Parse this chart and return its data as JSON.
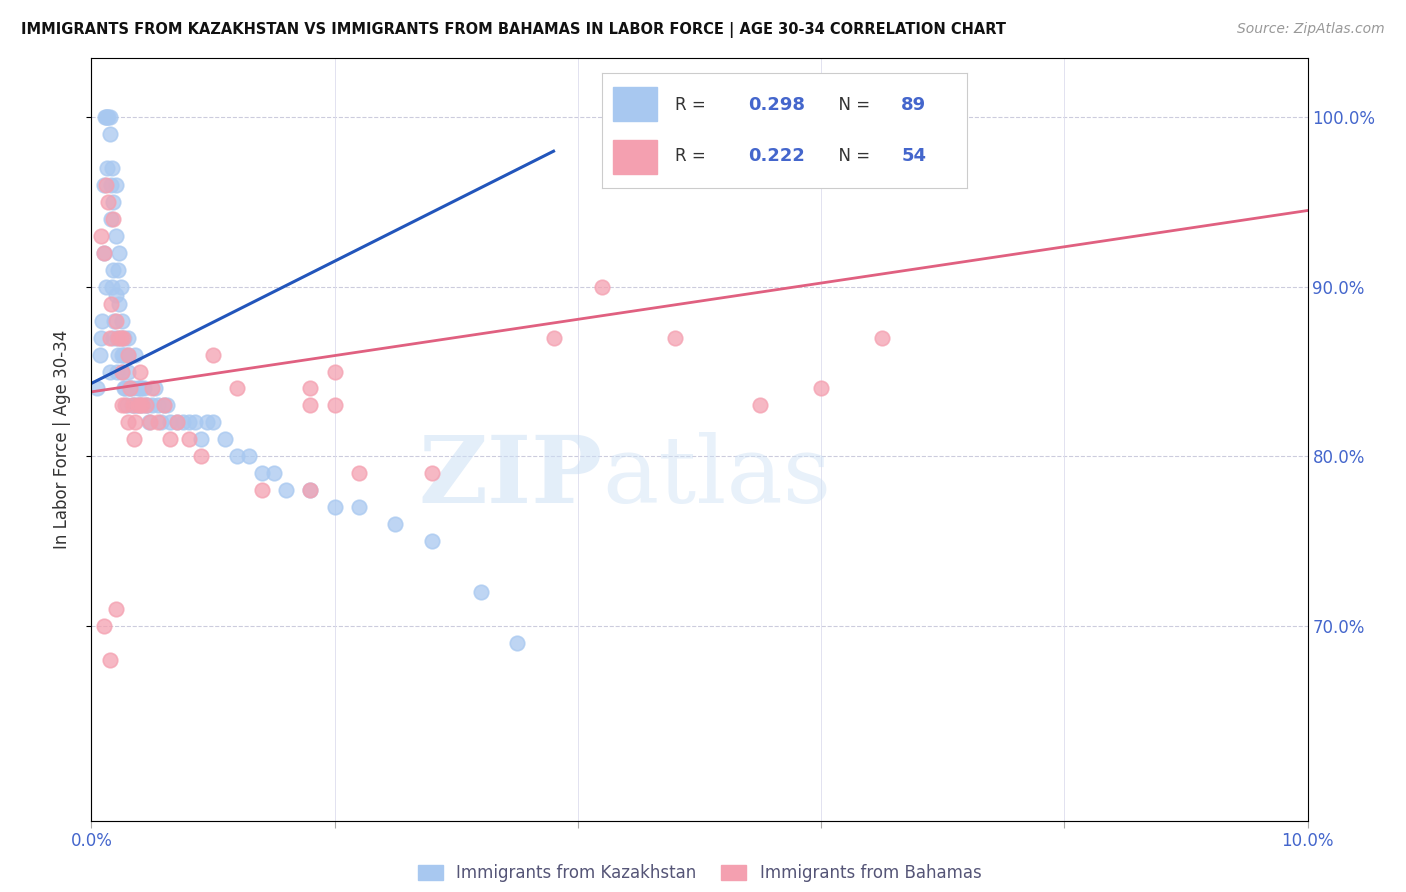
{
  "title": "IMMIGRANTS FROM KAZAKHSTAN VS IMMIGRANTS FROM BAHAMAS IN LABOR FORCE | AGE 30-34 CORRELATION CHART",
  "source": "Source: ZipAtlas.com",
  "ylabel": "In Labor Force | Age 30-34",
  "xlim": [
    0.0,
    0.1
  ],
  "ylim": [
    0.585,
    1.035
  ],
  "kazakhstan_color": "#a8c8f0",
  "bahamas_color": "#f4a0b0",
  "trend_kazakhstan_color": "#2255bb",
  "trend_bahamas_color": "#e06080",
  "R_kazakhstan": 0.298,
  "N_kazakhstan": 89,
  "R_bahamas": 0.222,
  "N_bahamas": 54,
  "legend_label_kazakhstan": "Immigrants from Kazakhstan",
  "legend_label_bahamas": "Immigrants from Bahamas",
  "background_color": "#ffffff",
  "watermark_text": "ZIP",
  "watermark_text2": "atlas",
  "value_color": "#4466cc",
  "kaz_x": [
    0.0008,
    0.001,
    0.001,
    0.0011,
    0.0012,
    0.0013,
    0.0013,
    0.0014,
    0.0015,
    0.0015,
    0.0016,
    0.0016,
    0.0017,
    0.0017,
    0.0018,
    0.0018,
    0.0019,
    0.002,
    0.002,
    0.002,
    0.0021,
    0.0022,
    0.0022,
    0.0023,
    0.0023,
    0.0024,
    0.0024,
    0.0025,
    0.0025,
    0.0026,
    0.0027,
    0.0027,
    0.0028,
    0.0028,
    0.0029,
    0.003,
    0.003,
    0.0031,
    0.0032,
    0.0033,
    0.0034,
    0.0035,
    0.0036,
    0.0037,
    0.0038,
    0.0039,
    0.004,
    0.0041,
    0.0042,
    0.0043,
    0.0045,
    0.0046,
    0.0047,
    0.005,
    0.0052,
    0.0055,
    0.0057,
    0.006,
    0.0062,
    0.0065,
    0.007,
    0.0075,
    0.008,
    0.0085,
    0.009,
    0.0095,
    0.01,
    0.011,
    0.012,
    0.013,
    0.014,
    0.015,
    0.016,
    0.018,
    0.02,
    0.022,
    0.025,
    0.028,
    0.032,
    0.035,
    0.0005,
    0.0007,
    0.0009,
    0.0012,
    0.0015,
    0.0018,
    0.0021,
    0.0025,
    0.003
  ],
  "kaz_y": [
    0.87,
    0.92,
    0.96,
    1.0,
    1.0,
    1.0,
    0.97,
    1.0,
    1.0,
    0.99,
    0.94,
    0.96,
    0.9,
    0.97,
    0.91,
    0.95,
    0.88,
    0.895,
    0.93,
    0.96,
    0.87,
    0.91,
    0.86,
    0.89,
    0.92,
    0.87,
    0.9,
    0.85,
    0.88,
    0.86,
    0.84,
    0.87,
    0.84,
    0.86,
    0.83,
    0.85,
    0.87,
    0.84,
    0.84,
    0.83,
    0.84,
    0.83,
    0.86,
    0.83,
    0.84,
    0.83,
    0.84,
    0.84,
    0.83,
    0.84,
    0.83,
    0.83,
    0.82,
    0.83,
    0.84,
    0.83,
    0.82,
    0.83,
    0.83,
    0.82,
    0.82,
    0.82,
    0.82,
    0.82,
    0.81,
    0.82,
    0.82,
    0.81,
    0.8,
    0.8,
    0.79,
    0.79,
    0.78,
    0.78,
    0.77,
    0.77,
    0.76,
    0.75,
    0.72,
    0.69,
    0.84,
    0.86,
    0.88,
    0.9,
    0.85,
    0.87,
    0.85,
    0.86,
    0.86
  ],
  "bah_x": [
    0.0008,
    0.001,
    0.0012,
    0.0014,
    0.0015,
    0.0016,
    0.0018,
    0.002,
    0.0022,
    0.0024,
    0.0025,
    0.0026,
    0.0028,
    0.003,
    0.0032,
    0.0034,
    0.0036,
    0.0038,
    0.004,
    0.0042,
    0.0045,
    0.0048,
    0.005,
    0.0055,
    0.006,
    0.0065,
    0.007,
    0.008,
    0.009,
    0.01,
    0.012,
    0.014,
    0.018,
    0.022,
    0.028,
    0.018,
    0.02,
    0.038,
    0.042,
    0.048,
    0.055,
    0.06,
    0.065,
    0.018,
    0.02,
    0.056,
    0.001,
    0.0015,
    0.002,
    0.0025,
    0.003,
    0.0035,
    0.004,
    0.05
  ],
  "bah_y": [
    0.93,
    0.92,
    0.96,
    0.95,
    0.87,
    0.89,
    0.94,
    0.88,
    0.87,
    0.87,
    0.85,
    0.87,
    0.83,
    0.86,
    0.84,
    0.83,
    0.82,
    0.83,
    0.85,
    0.83,
    0.83,
    0.82,
    0.84,
    0.82,
    0.83,
    0.81,
    0.82,
    0.81,
    0.8,
    0.86,
    0.84,
    0.78,
    0.78,
    0.79,
    0.79,
    0.83,
    0.83,
    0.87,
    0.9,
    0.87,
    0.83,
    0.84,
    0.87,
    0.84,
    0.85,
    1.0,
    0.7,
    0.68,
    0.71,
    0.83,
    0.82,
    0.81,
    0.83,
    1.0
  ],
  "kaz_trend_x0": 0.0,
  "kaz_trend_y0": 0.843,
  "kaz_trend_x1": 0.038,
  "kaz_trend_y1": 0.98,
  "bah_trend_x0": 0.0,
  "bah_trend_y0": 0.838,
  "bah_trend_x1": 0.1,
  "bah_trend_y1": 0.945
}
